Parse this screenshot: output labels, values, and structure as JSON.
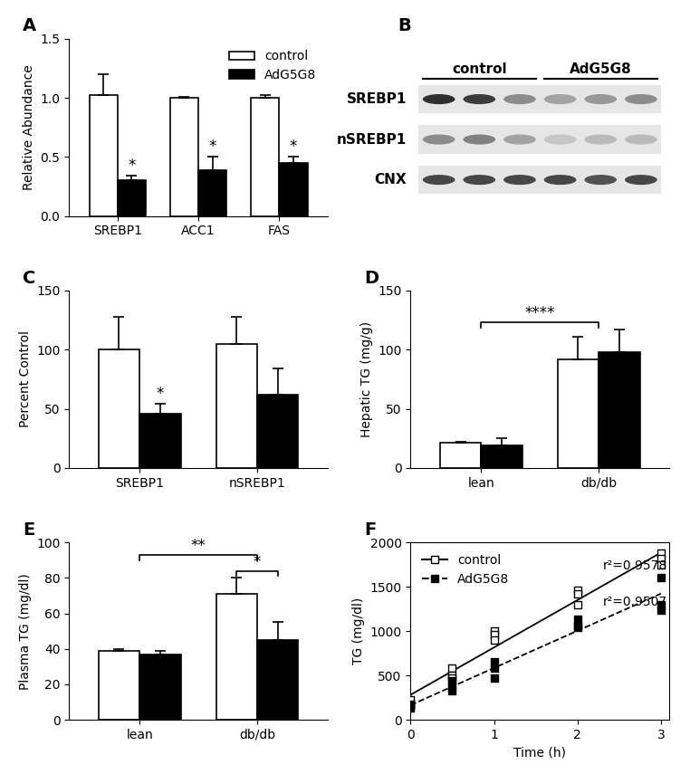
{
  "chart_data": [
    {
      "type": "bar",
      "title": "A",
      "ylabel": "Relative Abundance",
      "categories": [
        "SREBP1",
        "ACC1",
        "FAS"
      ],
      "series": [
        {
          "name": "control",
          "color": "#ffffff",
          "values": [
            1.02,
            1.0,
            1.0
          ],
          "errors": [
            0.18,
            0.005,
            0.02
          ],
          "significance": [
            null,
            null,
            null
          ]
        },
        {
          "name": "AdG5G8",
          "color": "#000000",
          "values": [
            0.3,
            0.39,
            0.45
          ],
          "errors": [
            0.04,
            0.11,
            0.05
          ],
          "significance": [
            "*",
            "*",
            "*"
          ]
        }
      ],
      "ylim": [
        0,
        1.5
      ],
      "yticks": [
        0.0,
        0.5,
        1.0,
        1.5
      ],
      "legend": "upper right",
      "comparisons": []
    },
    {
      "type": "blot",
      "title": "B",
      "groups": [
        "control",
        "AdG5G8"
      ],
      "rows": [
        "SREBP1",
        "nSREBP1",
        "CNX"
      ],
      "values": [
        [
          0.9,
          0.85,
          0.5,
          0.4,
          0.45,
          0.5
        ],
        [
          0.5,
          0.55,
          0.4,
          0.25,
          0.3,
          0.3
        ],
        [
          0.8,
          0.8,
          0.8,
          0.8,
          0.75,
          0.8
        ]
      ]
    },
    {
      "type": "bar",
      "title": "C",
      "ylabel": "Percent Control",
      "categories": [
        "SREBP1",
        "nSREBP1"
      ],
      "series": [
        {
          "name": "control",
          "color": "#ffffff",
          "values": [
            100,
            105
          ],
          "errors": [
            28,
            23
          ],
          "significance": [
            null,
            null
          ]
        },
        {
          "name": "AdG5G8",
          "color": "#000000",
          "values": [
            46,
            62
          ],
          "errors": [
            8,
            22
          ],
          "significance": [
            "*",
            null
          ]
        }
      ],
      "ylim": [
        0,
        150
      ],
      "yticks": [
        0,
        50,
        100,
        150
      ],
      "comparisons": []
    },
    {
      "type": "bar",
      "title": "D",
      "ylabel": "Hepatic TG (mg/g)",
      "categories": [
        "lean",
        "db/db"
      ],
      "series": [
        {
          "name": "control",
          "color": "#ffffff",
          "values": [
            21,
            92
          ],
          "errors": [
            1.5,
            19
          ],
          "significance": [
            null,
            null
          ]
        },
        {
          "name": "AdG5G8",
          "color": "#000000",
          "values": [
            19,
            98
          ],
          "errors": [
            6,
            19
          ],
          "significance": [
            null,
            null
          ]
        }
      ],
      "ylim": [
        0,
        150
      ],
      "yticks": [
        0,
        50,
        100,
        150
      ],
      "comparisons": [
        {
          "groups": [
            "lean",
            "db/db"
          ],
          "label": "****"
        }
      ]
    },
    {
      "type": "bar",
      "title": "E",
      "ylabel": "Plasma TG (mg/dl)",
      "categories": [
        "lean",
        "db/db"
      ],
      "series": [
        {
          "name": "control",
          "color": "#ffffff",
          "values": [
            39,
            71
          ],
          "errors": [
            1,
            9
          ],
          "significance": [
            null,
            null
          ]
        },
        {
          "name": "AdG5G8",
          "color": "#000000",
          "values": [
            37,
            45
          ],
          "errors": [
            2,
            10
          ],
          "significance": [
            null,
            null
          ]
        }
      ],
      "ylim": [
        0,
        100
      ],
      "yticks": [
        0,
        20,
        40,
        60,
        80,
        100
      ],
      "comparisons": [
        {
          "group": "db/db",
          "label": "*"
        },
        {
          "groups": [
            "lean",
            "db/db"
          ],
          "label": "**"
        }
      ]
    },
    {
      "type": "scatter",
      "title": "F",
      "xlabel": "Time (h)",
      "ylabel": "TG (mg/dl)",
      "series": [
        {
          "name": "control",
          "color": "#000000",
          "marker": "square_open",
          "line_style": "solid",
          "x": [
            0,
            0,
            0,
            0.5,
            0.5,
            0.5,
            1,
            1,
            1,
            2,
            2,
            2,
            3,
            3,
            3
          ],
          "values": [
            200,
            230,
            180,
            580,
            500,
            470,
            1000,
            960,
            900,
            1460,
            1420,
            1300,
            1880,
            1820,
            1750
          ],
          "annotation": "r²=0.9578"
        },
        {
          "name": "AdG5G8",
          "color": "#000000",
          "marker": "square",
          "line_style": "dashed",
          "x": [
            0,
            0,
            0,
            0.5,
            0.5,
            0.5,
            1,
            1,
            1,
            2,
            2,
            2,
            3,
            3,
            3
          ],
          "values": [
            130,
            160,
            150,
            440,
            380,
            330,
            650,
            580,
            470,
            1130,
            1060,
            1040,
            1600,
            1300,
            1240
          ],
          "annotation": "r²=0.9507"
        }
      ],
      "xlim": [
        0,
        3.1
      ],
      "xticks": [
        0,
        1,
        2,
        3
      ],
      "ylim": [
        0,
        2000
      ],
      "yticks": [
        0,
        500,
        1000,
        1500,
        2000
      ],
      "legend": "upper left"
    }
  ]
}
